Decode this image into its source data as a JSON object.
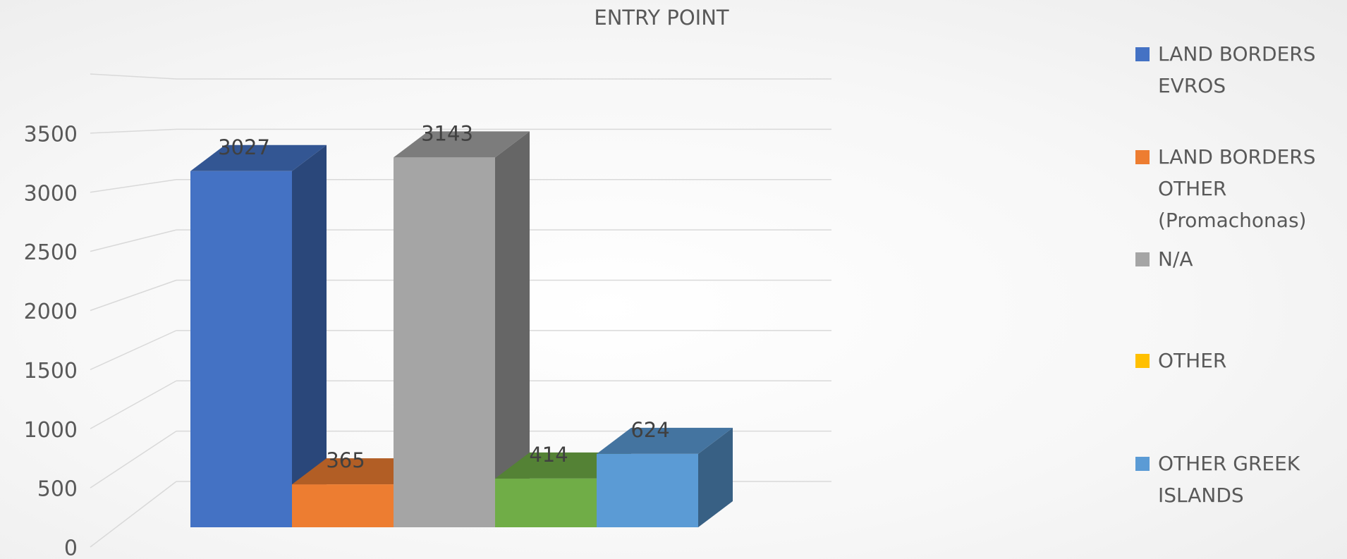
{
  "chart_data": {
    "type": "bar3d",
    "title": "ENTRY POINT",
    "series": [
      {
        "name": "LAND BORDERS EVROS",
        "color": "#4472c4",
        "values": [
          3027
        ]
      },
      {
        "name": "LAND BORDERS OTHER (Promachonas)",
        "color": "#ed7d31",
        "values": [
          365
        ]
      },
      {
        "name": "N/A",
        "color": "#a5a5a5",
        "values": [
          3143
        ]
      },
      {
        "name": null,
        "color": "#70ad47",
        "values": [
          414
        ]
      },
      {
        "name": "OTHER",
        "color": "#ffc000",
        "values": [
          null
        ]
      },
      {
        "name": "OTHER GREEK ISLANDS",
        "color": "#5b9bd5",
        "values": [
          624
        ]
      }
    ],
    "ylim": [
      0,
      4000
    ],
    "yticks": [
      0,
      500,
      1000,
      1500,
      2000,
      2500,
      3000,
      3500
    ],
    "grid": true,
    "legend": "right"
  }
}
